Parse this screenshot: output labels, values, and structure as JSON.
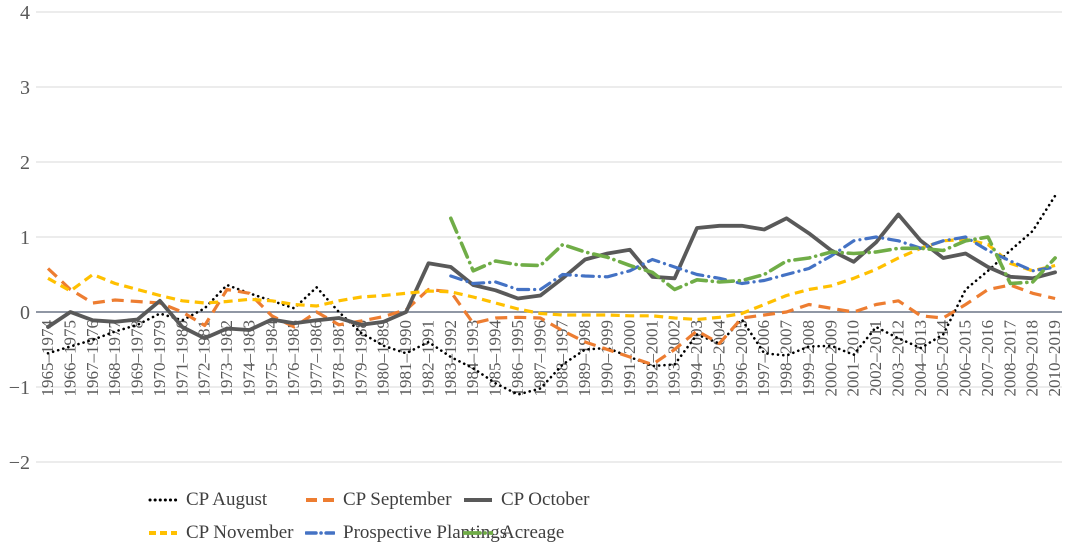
{
  "chart_data": {
    "type": "line",
    "title": "",
    "xlabel": "",
    "ylabel": "",
    "ylim": [
      -2,
      4
    ],
    "yticks": [
      4,
      3,
      2,
      1,
      0,
      -1,
      -2
    ],
    "grid": true,
    "legend_position": "bottom",
    "background": "#FFFFFF",
    "gridline_color": "#D9D9D9",
    "zero_line_color": "#6B7585",
    "axis_label_color": "#595959",
    "categories": [
      "1965–1974",
      "1966–1975",
      "1967–1976",
      "1968–1977",
      "1969–1978",
      "1970–1979",
      "1971–1980",
      "1972–1981",
      "1973–1982",
      "1974–1983",
      "1975–1984",
      "1976–1985",
      "1977–1986",
      "1978–1987",
      "1979–1988",
      "1980–1989",
      "1981–1990",
      "1982–1991",
      "1983–1992",
      "1984–1993",
      "1985–1994",
      "1986–1995",
      "1987–1996",
      "1988–1997",
      "1989–1998",
      "1990–1999",
      "1991–2000",
      "1992–2001",
      "1993–2002",
      "1994–2003",
      "1995–2004",
      "1996–2005",
      "1997–2006",
      "1998–2007",
      "1999–2008",
      "2000–2009",
      "2001–2010",
      "2002–2011",
      "2003–2012",
      "2004–2013",
      "2005–2014",
      "2006–2015",
      "2007–2016",
      "2008–2017",
      "2009–2018",
      "2010–2019"
    ],
    "series": [
      {
        "name": "CP August",
        "color": "#000000",
        "dash": "dotted",
        "values": [
          -0.55,
          -0.46,
          -0.37,
          -0.26,
          -0.17,
          -0.02,
          -0.11,
          0.05,
          0.36,
          0.25,
          0.15,
          0.05,
          0.33,
          0,
          -0.28,
          -0.45,
          -0.55,
          -0.4,
          -0.6,
          -0.75,
          -0.95,
          -1.1,
          -1.02,
          -0.7,
          -0.5,
          -0.48,
          -0.6,
          -0.72,
          -0.7,
          -0.3,
          -0.42,
          -0.1,
          -0.55,
          -0.58,
          -0.46,
          -0.45,
          -0.57,
          -0.2,
          -0.35,
          -0.48,
          -0.3,
          0.3,
          0.55,
          0.82,
          1.08,
          1.55
        ]
      },
      {
        "name": "CP September",
        "color": "#ED7D31",
        "dash": "dashed",
        "values": [
          0.58,
          0.3,
          0.12,
          0.16,
          0.14,
          0.12,
          0,
          -0.18,
          0.3,
          0.25,
          -0.05,
          -0.2,
          0,
          -0.17,
          -0.12,
          -0.06,
          0.03,
          0.3,
          0.27,
          -0.15,
          -0.08,
          -0.07,
          -0.08,
          -0.25,
          -0.4,
          -0.5,
          -0.6,
          -0.7,
          -0.5,
          -0.25,
          -0.42,
          -0.08,
          -0.04,
          0,
          0.1,
          0.05,
          0,
          0.1,
          0.15,
          -0.05,
          -0.08,
          0.1,
          0.3,
          0.36,
          0.25,
          0.18
        ]
      },
      {
        "name": "CP October",
        "color": "#595959",
        "dash": "solid",
        "values": [
          -0.2,
          0,
          -0.11,
          -0.13,
          -0.1,
          0.15,
          -0.2,
          -0.35,
          -0.22,
          -0.24,
          -0.1,
          -0.15,
          -0.11,
          -0.08,
          -0.17,
          -0.13,
          0,
          0.65,
          0.6,
          0.36,
          0.29,
          0.18,
          0.22,
          0.45,
          0.7,
          0.78,
          0.83,
          0.47,
          0.45,
          1.12,
          1.15,
          1.15,
          1.1,
          1.25,
          1.05,
          0.82,
          0.67,
          0.93,
          1.3,
          0.95,
          0.72,
          0.78,
          0.6,
          0.47,
          0.45,
          0.53
        ]
      },
      {
        "name": "CP November",
        "color": "#FFC000",
        "dash": "dashed",
        "values": [
          0.45,
          0.28,
          0.5,
          0.38,
          0.3,
          0.22,
          0.15,
          0.12,
          0.14,
          0.17,
          0.15,
          0.1,
          0.08,
          0.15,
          0.2,
          0.22,
          0.25,
          0.28,
          0.27,
          0.2,
          0.12,
          0.04,
          -0.02,
          -0.04,
          -0.04,
          -0.04,
          -0.05,
          -0.05,
          -0.08,
          -0.1,
          -0.07,
          -0.02,
          0.1,
          0.22,
          0.3,
          0.35,
          0.45,
          0.57,
          0.72,
          0.85,
          0.95,
          0.97,
          0.9,
          0.65,
          0.55,
          0.62
        ]
      },
      {
        "name": "Prospective Plantings",
        "color": "#4472C4",
        "dash": "dash-dot",
        "values": [
          null,
          null,
          null,
          null,
          null,
          null,
          null,
          null,
          null,
          null,
          null,
          null,
          null,
          null,
          null,
          null,
          null,
          null,
          0.48,
          0.38,
          0.4,
          0.3,
          0.3,
          0.5,
          0.48,
          0.47,
          0.55,
          0.7,
          0.6,
          0.5,
          0.45,
          0.38,
          0.42,
          0.5,
          0.58,
          0.75,
          0.95,
          1.0,
          0.95,
          0.85,
          0.95,
          1.0,
          0.82,
          0.68,
          0.55,
          0.6
        ]
      },
      {
        "name": "Acreage",
        "color": "#70AD47",
        "dash": "long-dash-dot",
        "values": [
          null,
          null,
          null,
          null,
          null,
          null,
          null,
          null,
          null,
          null,
          null,
          null,
          null,
          null,
          null,
          null,
          null,
          null,
          1.25,
          0.55,
          0.68,
          0.63,
          0.62,
          0.9,
          0.8,
          0.73,
          0.62,
          0.53,
          0.3,
          0.43,
          0.4,
          0.42,
          0.5,
          0.68,
          0.72,
          0.8,
          0.78,
          0.8,
          0.85,
          0.85,
          0.82,
          0.95,
          1.0,
          0.38,
          0.4,
          0.72
        ]
      }
    ]
  }
}
